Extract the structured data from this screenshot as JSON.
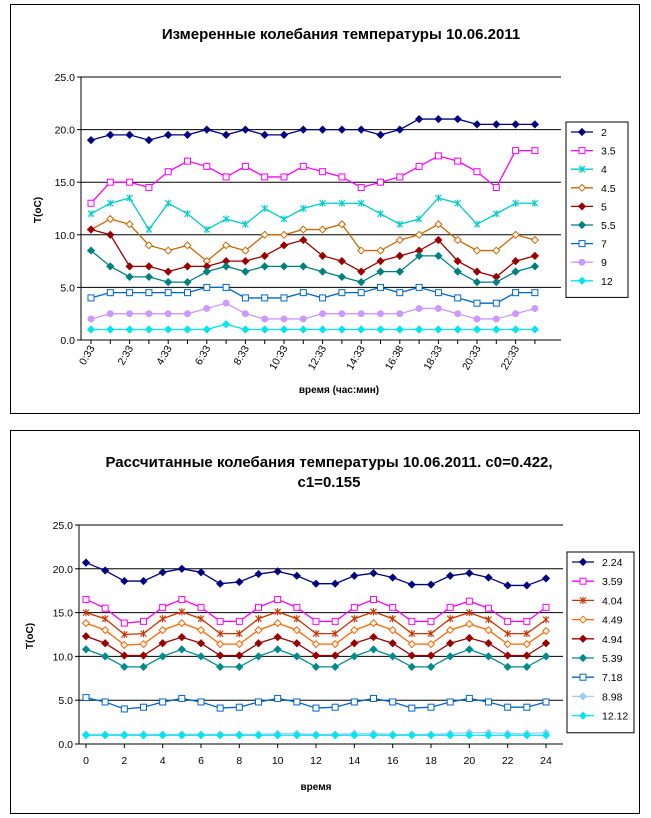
{
  "charts": [
    {
      "type": "line",
      "title_lines": [
        "Измеренные  колебания температуры 10.06.2011"
      ],
      "xlabel": "время (час:мин)",
      "ylabel": "T(oC)",
      "ylim": [
        0,
        25
      ],
      "yticks": [
        "0.0",
        "5.0",
        "10.0",
        "15.0",
        "20.0",
        "25.0"
      ],
      "x_count": 24,
      "x_ticks": [
        {
          "i": 0,
          "label": "0:33"
        },
        {
          "i": 2,
          "label": "2:33"
        },
        {
          "i": 4,
          "label": "4:33"
        },
        {
          "i": 6,
          "label": "6:33"
        },
        {
          "i": 8,
          "label": "8:33"
        },
        {
          "i": 10,
          "label": "10:33"
        },
        {
          "i": 12,
          "label": "12:33"
        },
        {
          "i": 14,
          "label": "14:33"
        },
        {
          "i": 16,
          "label": "16:38"
        },
        {
          "i": 18,
          "label": "18:33"
        },
        {
          "i": 20,
          "label": "20:33"
        },
        {
          "i": 22,
          "label": "22:33"
        }
      ],
      "series": [
        {
          "name": "2",
          "color": "#000080",
          "marker": "diamond",
          "fill": true,
          "values": [
            19,
            19.5,
            19.5,
            19,
            19.5,
            19.5,
            20,
            19.5,
            20,
            19.5,
            19.5,
            20,
            20,
            20,
            20,
            19.5,
            20,
            21,
            21,
            21,
            20.5,
            20.5,
            20.5,
            20.5
          ]
        },
        {
          "name": "3.5",
          "color": "#ff00ff",
          "marker": "square",
          "fill": false,
          "values": [
            13,
            15,
            15,
            14.5,
            16,
            17,
            16.5,
            15.5,
            16.5,
            15.5,
            15.5,
            16.5,
            16,
            15.5,
            14.5,
            15,
            15.5,
            16.5,
            17.5,
            17,
            16,
            14.5,
            18,
            18
          ]
        },
        {
          "name": "4",
          "color": "#00cccc",
          "marker": "star",
          "fill": false,
          "values": [
            12,
            13,
            13.5,
            10.5,
            13,
            12,
            10.5,
            11.5,
            11,
            12.5,
            11.5,
            12.5,
            13,
            13,
            13,
            12,
            11,
            11.5,
            13.5,
            13,
            11,
            12,
            13,
            13
          ]
        },
        {
          "name": "4.5",
          "color": "#cc6600",
          "marker": "diamond",
          "fill": false,
          "values": [
            10.5,
            11.5,
            11,
            9,
            8.5,
            9,
            7.5,
            9,
            8.5,
            10,
            10,
            10.5,
            10.5,
            11,
            8.5,
            8.5,
            9.5,
            10,
            11,
            9.5,
            8.5,
            8.5,
            10,
            9.5
          ]
        },
        {
          "name": "5",
          "color": "#990000",
          "marker": "diamond",
          "fill": true,
          "values": [
            10.5,
            10,
            7,
            7,
            6.5,
            7,
            7,
            7.5,
            7.5,
            8,
            9,
            9.5,
            8,
            7.5,
            6.5,
            7.5,
            8,
            8.5,
            9.5,
            7.5,
            6.5,
            6,
            7.5,
            8
          ]
        },
        {
          "name": "5.5",
          "color": "#008080",
          "marker": "diamond",
          "fill": true,
          "values": [
            8.5,
            7,
            6,
            6,
            5.5,
            5.5,
            6.5,
            7,
            6.5,
            7,
            7,
            7,
            6.5,
            6,
            5.5,
            6.5,
            6.5,
            8,
            8,
            6.5,
            5.5,
            5.5,
            6.5,
            7
          ]
        },
        {
          "name": "7",
          "color": "#0066cc",
          "marker": "square",
          "fill": false,
          "values": [
            4,
            4.5,
            4.5,
            4.5,
            4.5,
            4.5,
            5,
            5,
            4,
            4,
            4,
            4.5,
            4,
            4.5,
            4.5,
            5,
            4.5,
            5,
            4.5,
            4,
            3.5,
            3.5,
            4.5,
            4.5
          ]
        },
        {
          "name": "9",
          "color": "#cc99ff",
          "marker": "circle",
          "fill": true,
          "values": [
            2,
            2.5,
            2.5,
            2.5,
            2.5,
            2.5,
            3,
            3.5,
            2.5,
            2,
            2,
            2,
            2.5,
            2.5,
            2.5,
            2.5,
            2.5,
            3,
            3,
            2.5,
            2,
            2,
            2.5,
            3
          ]
        },
        {
          "name": "12",
          "color": "#00e5ee",
          "marker": "diamond",
          "fill": true,
          "values": [
            1,
            1,
            1,
            1,
            1,
            1,
            1,
            1.5,
            1,
            1,
            1,
            1,
            1,
            1,
            1,
            1,
            1,
            1,
            1,
            1,
            1,
            1,
            1,
            1
          ]
        }
      ]
    },
    {
      "type": "line",
      "title_lines": [
        "Рассчитанные колебания температуры  10.06.2011.   c0=0.422,",
        "c1=0.155"
      ],
      "xlabel": "время",
      "ylabel": "T(oC)",
      "ylim": [
        0,
        25
      ],
      "yticks": [
        "0.0",
        "5.0",
        "10.0",
        "15.0",
        "20.0",
        "25.0"
      ],
      "xlim": [
        0,
        24
      ],
      "xticks": [
        "0",
        "2",
        "4",
        "6",
        "8",
        "10",
        "12",
        "14",
        "16",
        "18",
        "20",
        "22",
        "24"
      ],
      "x": [
        0,
        1,
        2,
        3,
        4,
        5,
        6,
        7,
        8,
        9,
        10,
        11,
        12,
        13,
        14,
        15,
        16,
        17,
        18,
        19,
        20,
        21,
        22,
        23,
        24
      ],
      "series": [
        {
          "name": "2.24",
          "color": "#000080",
          "marker": "diamond",
          "fill": true,
          "values": [
            20.7,
            19.8,
            18.6,
            18.6,
            19.6,
            20.0,
            19.6,
            18.3,
            18.5,
            19.4,
            19.7,
            19.2,
            18.3,
            18.3,
            19.2,
            19.5,
            19.0,
            18.2,
            18.2,
            19.2,
            19.5,
            19.0,
            18.1,
            18.1,
            18.9
          ]
        },
        {
          "name": "3.59",
          "color": "#ff00ff",
          "marker": "square",
          "fill": false,
          "values": [
            16.5,
            15.5,
            13.8,
            14.0,
            15.6,
            16.5,
            15.6,
            14.0,
            14.0,
            15.6,
            16.5,
            15.6,
            14.0,
            14.0,
            15.6,
            16.5,
            15.6,
            14.0,
            14.0,
            15.6,
            16.3,
            15.5,
            14.0,
            14.0,
            15.6
          ]
        },
        {
          "name": "4.04",
          "color": "#cc3300",
          "marker": "star",
          "fill": false,
          "values": [
            15.0,
            14.3,
            12.5,
            12.6,
            14.3,
            15.1,
            14.3,
            12.6,
            12.6,
            14.3,
            15.1,
            14.3,
            12.6,
            12.6,
            14.3,
            15.1,
            14.3,
            12.6,
            12.6,
            14.3,
            15.0,
            14.2,
            12.6,
            12.6,
            14.2
          ]
        },
        {
          "name": "4.49",
          "color": "#ff6600",
          "marker": "diamond",
          "fill": false,
          "values": [
            13.8,
            13.0,
            11.3,
            11.4,
            13.0,
            13.8,
            13.0,
            11.4,
            11.4,
            13.0,
            13.8,
            13.0,
            11.4,
            11.4,
            13.0,
            13.8,
            13.0,
            11.4,
            11.4,
            13.0,
            13.7,
            13.0,
            11.4,
            11.4,
            12.9
          ]
        },
        {
          "name": "4.94",
          "color": "#990000",
          "marker": "diamond",
          "fill": true,
          "values": [
            12.3,
            11.5,
            10.1,
            10.1,
            11.5,
            12.2,
            11.5,
            10.1,
            10.1,
            11.5,
            12.2,
            11.5,
            10.1,
            10.1,
            11.5,
            12.2,
            11.5,
            10.1,
            10.1,
            11.5,
            12.1,
            11.5,
            10.1,
            10.1,
            11.5
          ]
        },
        {
          "name": "5.39",
          "color": "#008b8b",
          "marker": "diamond",
          "fill": true,
          "values": [
            10.8,
            10.0,
            8.8,
            8.8,
            10.0,
            10.8,
            10.0,
            8.8,
            8.8,
            10.0,
            10.8,
            10.0,
            8.8,
            8.8,
            10.0,
            10.8,
            10.0,
            8.8,
            8.8,
            10.0,
            10.8,
            10.0,
            8.8,
            8.8,
            10.0
          ]
        },
        {
          "name": "7.18",
          "color": "#0066cc",
          "marker": "square",
          "fill": false,
          "values": [
            5.3,
            4.8,
            4.0,
            4.2,
            4.8,
            5.2,
            4.8,
            4.1,
            4.2,
            4.8,
            5.2,
            4.8,
            4.1,
            4.2,
            4.8,
            5.2,
            4.8,
            4.1,
            4.2,
            4.8,
            5.2,
            4.8,
            4.2,
            4.2,
            4.8
          ]
        },
        {
          "name": "8.98",
          "color": "#99ccff",
          "marker": "diamond",
          "fill": true,
          "values": [
            1.1,
            1.1,
            1.1,
            1.1,
            1.1,
            1.1,
            1.1,
            1.1,
            1.1,
            1.1,
            1.2,
            1.2,
            1.1,
            1.1,
            1.2,
            1.2,
            1.1,
            1.1,
            1.1,
            1.2,
            1.3,
            1.3,
            1.2,
            1.2,
            1.3
          ]
        },
        {
          "name": "12.12",
          "color": "#00e5ee",
          "marker": "diamond",
          "fill": true,
          "values": [
            1.0,
            1.0,
            1.0,
            1.0,
            1.0,
            1.0,
            1.0,
            1.0,
            1.0,
            1.0,
            1.0,
            1.0,
            1.0,
            1.0,
            1.0,
            1.0,
            1.0,
            1.0,
            1.0,
            1.0,
            1.0,
            1.0,
            1.0,
            1.0,
            1.0
          ]
        }
      ]
    }
  ]
}
